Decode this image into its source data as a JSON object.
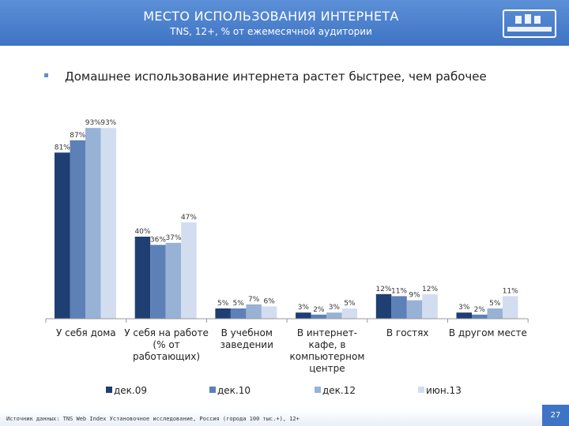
{
  "header": {
    "title": "МЕСТО ИСПОЛЬЗОВАНИЯ ИНТЕРНЕТА",
    "subtitle": "TNS, 12+, % от ежемесячной аудитории"
  },
  "headline": "Домашнее использование интернета растет быстрее, чем рабочее",
  "chart_data": {
    "type": "bar",
    "categories": [
      [
        "У себя дома"
      ],
      [
        "У себя на работе",
        "(% от",
        "работающих)"
      ],
      [
        "В учебном",
        "заведении"
      ],
      [
        "В интернет-",
        "кафе, в",
        "компьютерном",
        "центре"
      ],
      [
        "В гостях"
      ],
      [
        "В другом месте"
      ]
    ],
    "series": [
      {
        "name": "дек.09",
        "values": [
          81,
          40,
          5,
          3,
          12,
          3
        ],
        "color": "#1f3f73"
      },
      {
        "name": "дек.10",
        "values": [
          87,
          36,
          5,
          2,
          11,
          2
        ],
        "color": "#5d80b6"
      },
      {
        "name": "дек.12",
        "values": [
          93,
          37,
          7,
          3,
          9,
          5
        ],
        "color": "#98b2d6"
      },
      {
        "name": "июн.13",
        "values": [
          93,
          47,
          6,
          5,
          12,
          11
        ],
        "color": "#d2def0"
      }
    ],
    "value_suffix": "%",
    "ylim": [
      0,
      100
    ],
    "legend_position": "bottom",
    "grid": false
  },
  "footer": {
    "source": "Источник данных: TNS Web Index Установочное исследование, Россия (города 100 тыс.+), 12+",
    "page": "27"
  }
}
